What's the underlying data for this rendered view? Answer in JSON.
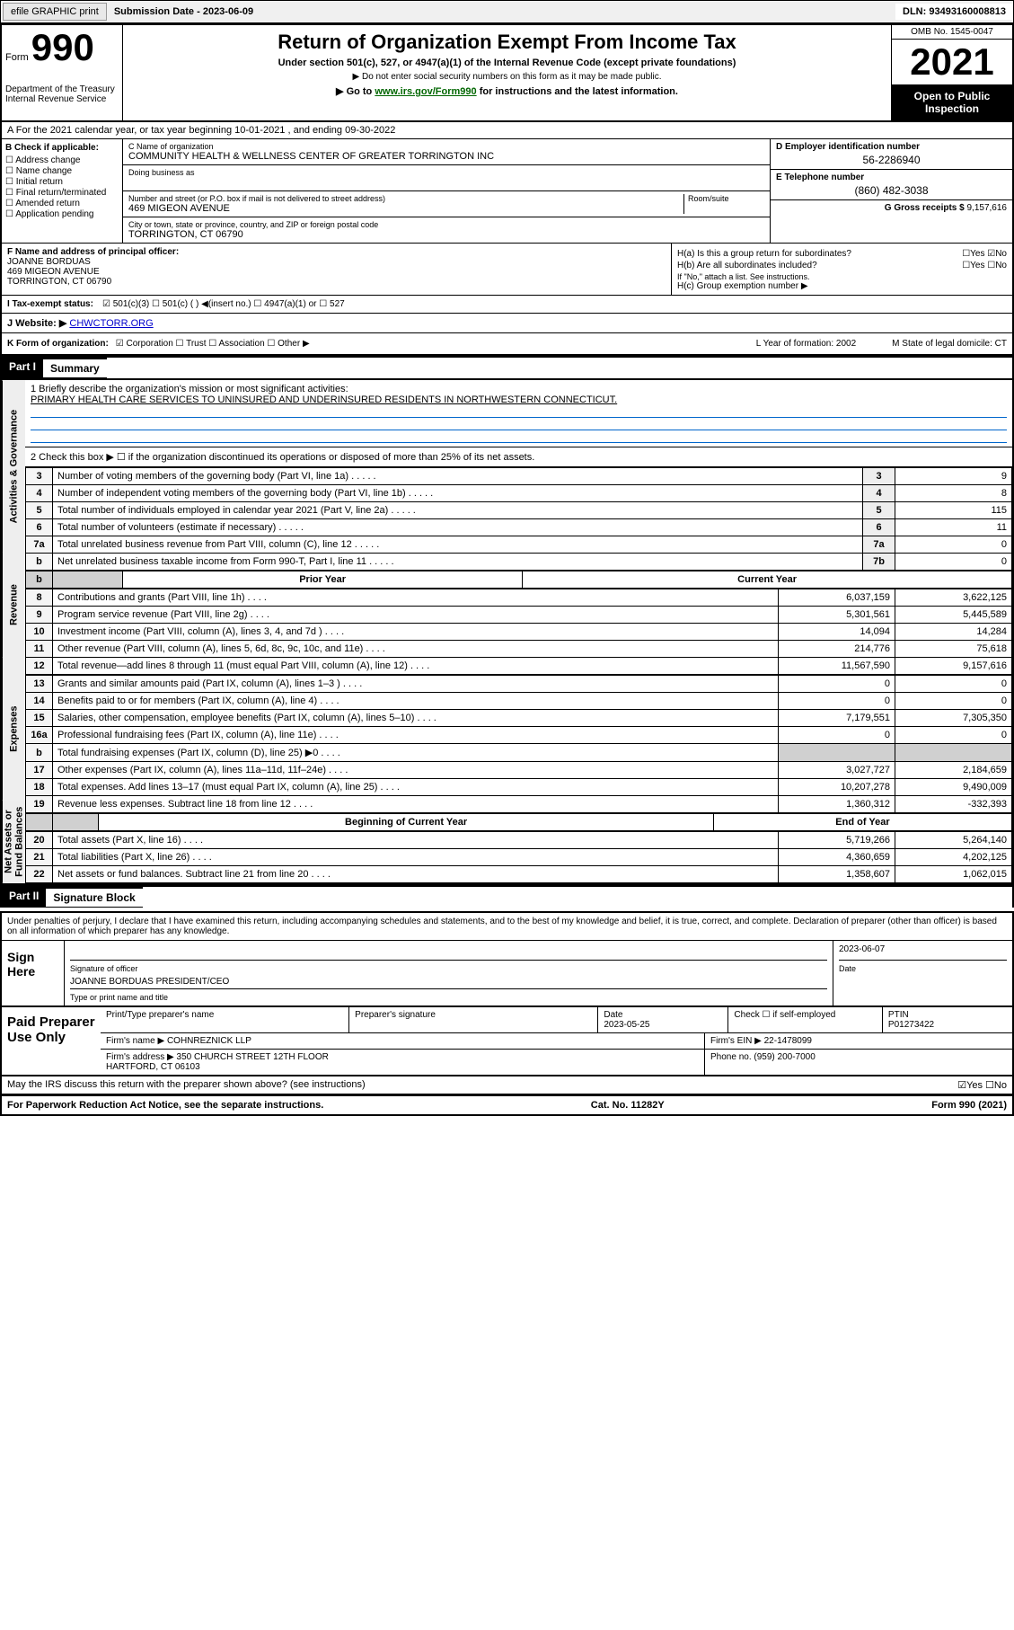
{
  "header": {
    "efile": "efile GRAPHIC print",
    "submission_label": "Submission Date - 2023-06-09",
    "dln": "DLN: 93493160008813"
  },
  "top": {
    "form_label": "Form",
    "form_num": "990",
    "title": "Return of Organization Exempt From Income Tax",
    "subtitle": "Under section 501(c), 527, or 4947(a)(1) of the Internal Revenue Code (except private foundations)",
    "note1": "▶ Do not enter social security numbers on this form as it may be made public.",
    "note2_pre": "▶ Go to ",
    "note2_link": "www.irs.gov/Form990",
    "note2_post": " for instructions and the latest information.",
    "dept": "Department of the Treasury\nInternal Revenue Service",
    "omb": "OMB No. 1545-0047",
    "year": "2021",
    "public": "Open to Public Inspection"
  },
  "row_a": "A For the 2021 calendar year, or tax year beginning 10-01-2021  , and ending 09-30-2022",
  "col_b": {
    "label": "B Check if applicable:",
    "items": [
      "Address change",
      "Name change",
      "Initial return",
      "Final return/terminated",
      "Amended return",
      "Application pending"
    ]
  },
  "col_c": {
    "name_hint": "C Name of organization",
    "name": "COMMUNITY HEALTH & WELLNESS CENTER OF GREATER TORRINGTON INC",
    "dba_hint": "Doing business as",
    "addr_hint": "Number and street (or P.O. box if mail is not delivered to street address)",
    "room_hint": "Room/suite",
    "addr": "469 MIGEON AVENUE",
    "city_hint": "City or town, state or province, country, and ZIP or foreign postal code",
    "city": "TORRINGTON, CT  06790"
  },
  "col_de": {
    "d_label": "D Employer identification number",
    "d_val": "56-2286940",
    "e_label": "E Telephone number",
    "e_val": "(860) 482-3038",
    "g_label": "G Gross receipts $",
    "g_val": "9,157,616"
  },
  "row_f": {
    "label": "F Name and address of principal officer:",
    "name": "JOANNE BORDUAS",
    "addr1": "469 MIGEON AVENUE",
    "addr2": "TORRINGTON, CT  06790"
  },
  "row_h": {
    "ha": "H(a) Is this a group return for subordinates?",
    "ha_ans": "☐Yes ☑No",
    "hb": "H(b) Are all subordinates included?",
    "hb_ans": "☐Yes ☐No",
    "hb_note": "If \"No,\" attach a list. See instructions.",
    "hc": "H(c) Group exemption number ▶"
  },
  "row_i": {
    "label": "I   Tax-exempt status:",
    "opts": "☑ 501(c)(3)   ☐ 501(c) (  ) ◀(insert no.)   ☐ 4947(a)(1) or   ☐ 527"
  },
  "row_j": {
    "label": "J   Website: ▶",
    "val": "CHWCTORR.ORG"
  },
  "row_k": {
    "label": "K Form of organization:",
    "opts": "☑ Corporation  ☐ Trust  ☐ Association  ☐ Other ▶",
    "l": "L Year of formation: 2002",
    "m": "M State of legal domicile: CT"
  },
  "part1": {
    "hdr": "Part I",
    "title": "Summary",
    "line1_label": "1  Briefly describe the organization's mission or most significant activities:",
    "mission": "PRIMARY HEALTH CARE SERVICES TO UNINSURED AND UNDERINSURED RESIDENTS IN NORTHWESTERN CONNECTICUT.",
    "line2": "2  Check this box ▶ ☐  if the organization discontinued its operations or disposed of more than 25% of its net assets.",
    "prior_hdr": "Prior Year",
    "curr_hdr": "Current Year",
    "begin_hdr": "Beginning of Current Year",
    "end_hdr": "End of Year",
    "vtabs": [
      "Activities & Governance",
      "Revenue",
      "Expenses",
      "Net Assets or Fund Balances"
    ],
    "gov_rows": [
      {
        "n": "3",
        "desc": "Number of voting members of the governing body (Part VI, line 1a)",
        "box": "3",
        "val": "9"
      },
      {
        "n": "4",
        "desc": "Number of independent voting members of the governing body (Part VI, line 1b)",
        "box": "4",
        "val": "8"
      },
      {
        "n": "5",
        "desc": "Total number of individuals employed in calendar year 2021 (Part V, line 2a)",
        "box": "5",
        "val": "115"
      },
      {
        "n": "6",
        "desc": "Total number of volunteers (estimate if necessary)",
        "box": "6",
        "val": "11"
      },
      {
        "n": "7a",
        "desc": "Total unrelated business revenue from Part VIII, column (C), line 12",
        "box": "7a",
        "val": "0"
      },
      {
        "n": "b",
        "desc": "Net unrelated business taxable income from Form 990-T, Part I, line 11",
        "box": "7b",
        "val": "0"
      }
    ],
    "rev_rows": [
      {
        "n": "8",
        "desc": "Contributions and grants (Part VIII, line 1h)",
        "py": "6,037,159",
        "cy": "3,622,125"
      },
      {
        "n": "9",
        "desc": "Program service revenue (Part VIII, line 2g)",
        "py": "5,301,561",
        "cy": "5,445,589"
      },
      {
        "n": "10",
        "desc": "Investment income (Part VIII, column (A), lines 3, 4, and 7d )",
        "py": "14,094",
        "cy": "14,284"
      },
      {
        "n": "11",
        "desc": "Other revenue (Part VIII, column (A), lines 5, 6d, 8c, 9c, 10c, and 11e)",
        "py": "214,776",
        "cy": "75,618"
      },
      {
        "n": "12",
        "desc": "Total revenue—add lines 8 through 11 (must equal Part VIII, column (A), line 12)",
        "py": "11,567,590",
        "cy": "9,157,616"
      }
    ],
    "exp_rows": [
      {
        "n": "13",
        "desc": "Grants and similar amounts paid (Part IX, column (A), lines 1–3 )",
        "py": "0",
        "cy": "0"
      },
      {
        "n": "14",
        "desc": "Benefits paid to or for members (Part IX, column (A), line 4)",
        "py": "0",
        "cy": "0"
      },
      {
        "n": "15",
        "desc": "Salaries, other compensation, employee benefits (Part IX, column (A), lines 5–10)",
        "py": "7,179,551",
        "cy": "7,305,350"
      },
      {
        "n": "16a",
        "desc": "Professional fundraising fees (Part IX, column (A), line 11e)",
        "py": "0",
        "cy": "0"
      },
      {
        "n": "b",
        "desc": "Total fundraising expenses (Part IX, column (D), line 25) ▶0",
        "py": "",
        "cy": "",
        "grey": true
      },
      {
        "n": "17",
        "desc": "Other expenses (Part IX, column (A), lines 11a–11d, 11f–24e)",
        "py": "3,027,727",
        "cy": "2,184,659"
      },
      {
        "n": "18",
        "desc": "Total expenses. Add lines 13–17 (must equal Part IX, column (A), line 25)",
        "py": "10,207,278",
        "cy": "9,490,009"
      },
      {
        "n": "19",
        "desc": "Revenue less expenses. Subtract line 18 from line 12",
        "py": "1,360,312",
        "cy": "-332,393"
      }
    ],
    "net_rows": [
      {
        "n": "20",
        "desc": "Total assets (Part X, line 16)",
        "py": "5,719,266",
        "cy": "5,264,140"
      },
      {
        "n": "21",
        "desc": "Total liabilities (Part X, line 26)",
        "py": "4,360,659",
        "cy": "4,202,125"
      },
      {
        "n": "22",
        "desc": "Net assets or fund balances. Subtract line 21 from line 20",
        "py": "1,358,607",
        "cy": "1,062,015"
      }
    ]
  },
  "part2": {
    "hdr": "Part II",
    "title": "Signature Block",
    "decl": "Under penalties of perjury, I declare that I have examined this return, including accompanying schedules and statements, and to the best of my knowledge and belief, it is true, correct, and complete. Declaration of preparer (other than officer) is based on all information of which preparer has any knowledge.",
    "sign_here": "Sign Here",
    "sig_officer": "Signature of officer",
    "sig_date": "2023-06-07",
    "date_lbl": "Date",
    "officer_name": "JOANNE BORDUAS PRESIDENT/CEO",
    "officer_hint": "Type or print name and title",
    "paid": "Paid Preparer Use Only",
    "p_name_hint": "Print/Type preparer's name",
    "p_sig_hint": "Preparer's signature",
    "p_date_hint": "Date",
    "p_date": "2023-05-25",
    "p_self": "Check ☐ if self-employed",
    "p_ptin_lbl": "PTIN",
    "p_ptin": "P01273422",
    "firm_name_lbl": "Firm's name   ▶",
    "firm_name": "COHNREZNICK LLP",
    "firm_ein_lbl": "Firm's EIN ▶",
    "firm_ein": "22-1478099",
    "firm_addr_lbl": "Firm's address ▶",
    "firm_addr": "350 CHURCH STREET 12TH FLOOR\nHARTFORD, CT  06103",
    "phone_lbl": "Phone no.",
    "phone": "(959) 200-7000",
    "discuss": "May the IRS discuss this return with the preparer shown above? (see instructions)",
    "discuss_ans": "☑Yes  ☐No"
  },
  "footer": {
    "left": "For Paperwork Reduction Act Notice, see the separate instructions.",
    "mid": "Cat. No. 11282Y",
    "right": "Form 990 (2021)"
  }
}
